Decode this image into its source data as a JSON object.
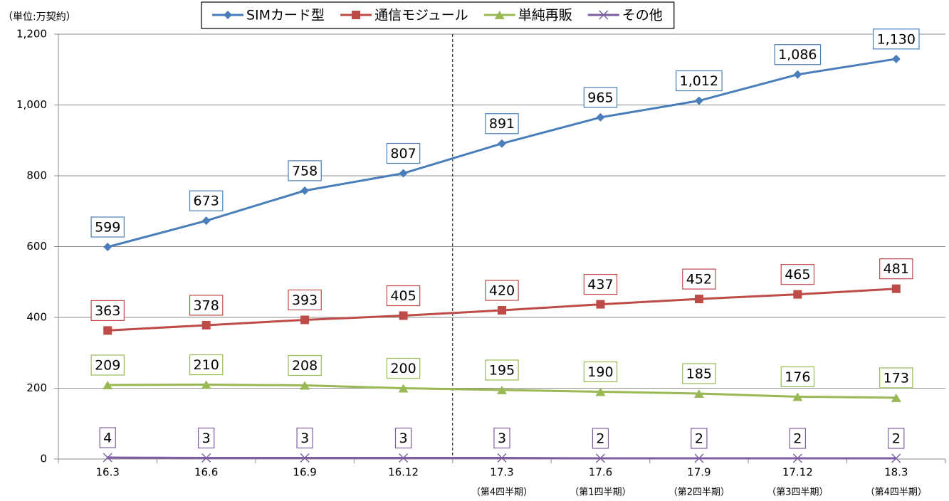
{
  "chart_data": {
    "type": "line",
    "y_axis_label": "（単位:万契約）",
    "categories": [
      "16.3",
      "16.6",
      "16.9",
      "16.12",
      "17.3",
      "17.6",
      "17.9",
      "17.12",
      "18.3"
    ],
    "category_sublabels": [
      null,
      null,
      null,
      null,
      "（第4四半期）",
      "（第1四半期）",
      "（第2四半期）",
      "（第3四半期）",
      "（第4四半期）"
    ],
    "ylim": [
      0,
      1200
    ],
    "yticks": [
      0,
      200,
      400,
      600,
      800,
      {
        "value": 1000,
        "label": "1,000"
      },
      {
        "value": 1200,
        "label": "1,200"
      }
    ],
    "grid": true,
    "legend": "top",
    "series": [
      {
        "name": "SIMカード型",
        "color": "#4a7ebb",
        "marker": "diamond",
        "values": [
          599,
          673,
          758,
          807,
          891,
          965,
          1012,
          1086,
          1130
        ],
        "value_labels": [
          "599",
          "673",
          "758",
          "807",
          "891",
          "965",
          "1,012",
          "1,086",
          "1,130"
        ]
      },
      {
        "name": "通信モジュール",
        "color": "#be4b48",
        "marker": "square",
        "values": [
          363,
          378,
          393,
          405,
          420,
          437,
          452,
          465,
          481
        ]
      },
      {
        "name": "単純再販",
        "color": "#98b954",
        "marker": "triangle",
        "values": [
          209,
          210,
          208,
          200,
          195,
          190,
          185,
          176,
          173
        ]
      },
      {
        "name": "その他",
        "color": "#7d5fa0",
        "marker": "x",
        "values": [
          4,
          3,
          3,
          3,
          3,
          2,
          2,
          2,
          2
        ]
      }
    ]
  }
}
